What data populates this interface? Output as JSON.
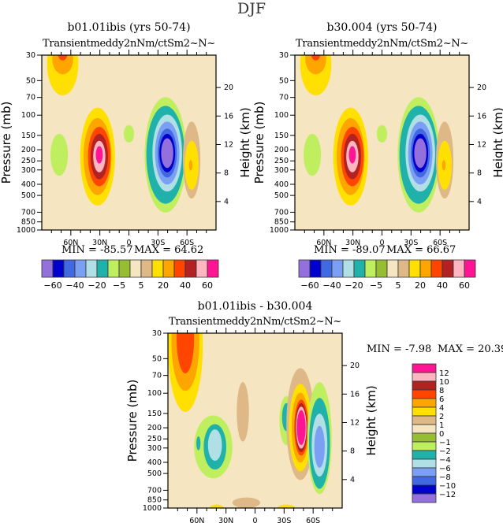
{
  "suptitle": "DJF",
  "chart_data": [
    {
      "type": "heatmap",
      "subtype": "filled-contour",
      "title": "b01.01ibis (yrs 50-74)",
      "subtitle_overlap": "Transient eddy momentum (m2/s2) ~N~",
      "subtitle_raw": "Transientmeddy2nNm/ctSm2~N~",
      "xlabel": "",
      "ylabel": "Pressure (mb)",
      "ylabel_right": "Height (km)",
      "x_ticks": [
        "60N",
        "30N",
        "0",
        "30S",
        "60S"
      ],
      "x_range": [
        "90N",
        "90S"
      ],
      "y_ticks": [
        30,
        50,
        70,
        100,
        150,
        200,
        250,
        300,
        400,
        500,
        700,
        850,
        1000
      ],
      "y_range_mb": [
        1000,
        30
      ],
      "y_right_ticks": [
        4,
        8,
        12,
        16,
        20
      ],
      "min": -85.57,
      "max": 64.62,
      "min_label": "MIN = -85.57",
      "max_label": "MAX = 64.62",
      "features": [
        {
          "desc": "positive max near 30N, ~250mb",
          "lat": 25,
          "p": 250,
          "value": 64.62
        },
        {
          "desc": "negative min near 30S, ~200mb",
          "lat": -35,
          "p": 200,
          "value": -85.57
        },
        {
          "desc": "positive lobe near 60N, stratosphere",
          "lat": 70,
          "p": 30,
          "value": 40
        },
        {
          "desc": "weak positive near 60S",
          "lat": -60,
          "p": 300,
          "value": 25
        }
      ]
    },
    {
      "type": "heatmap",
      "subtype": "filled-contour",
      "title": "b30.004 (yrs 50-74)",
      "subtitle_overlap": "Transient eddy momentum (m2/s2) ~N~",
      "subtitle_raw": "Transientmeddy2nNm/ctSm2~N~",
      "ylabel": "Pressure (mb)",
      "ylabel_right": "Height (km)",
      "x_ticks": [
        "60N",
        "30N",
        "0",
        "30S",
        "60S"
      ],
      "y_ticks": [
        30,
        50,
        70,
        100,
        150,
        200,
        250,
        300,
        400,
        500,
        700,
        850,
        1000
      ],
      "y_right_ticks": [
        4,
        8,
        12,
        16,
        20
      ],
      "min": -89.07,
      "max": 66.67,
      "min_label": "MIN = -89.07",
      "max_label": "MAX = 66.67",
      "features": [
        {
          "desc": "positive max near 30N, ~250mb",
          "lat": 28,
          "p": 250,
          "value": 66.67
        },
        {
          "desc": "negative min near 30S, ~200mb",
          "lat": -38,
          "p": 200,
          "value": -89.07
        },
        {
          "desc": "positive lobe near 60N, stratosphere",
          "lat": 70,
          "p": 30,
          "value": 20
        },
        {
          "desc": "weak positive near 60S",
          "lat": -62,
          "p": 300,
          "value": 25
        }
      ]
    },
    {
      "type": "heatmap",
      "subtype": "filled-contour",
      "title": "b01.01ibis - b30.004",
      "subtitle_overlap": "Transient eddy momentum (m2/s2) ~N~",
      "subtitle_raw": "Transientmeddy2nNm/ctSm2~N~",
      "ylabel": "Pressure (mb)",
      "ylabel_right": "Height (km)",
      "x_ticks": [
        "60N",
        "30N",
        "0",
        "30S",
        "60S"
      ],
      "y_ticks": [
        30,
        50,
        70,
        100,
        150,
        200,
        250,
        300,
        400,
        500,
        700,
        850,
        1000
      ],
      "y_right_ticks": [
        4,
        8,
        12,
        16,
        20
      ],
      "min": -7.98,
      "max": 20.39,
      "min_label": "MIN = -7.98",
      "max_label": "MAX = 20.39",
      "features": [
        {
          "desc": "positive max near 80N stratosphere",
          "lat": 78,
          "p": 30,
          "value": 8
        },
        {
          "desc": "negative lobe near 50N, ~300mb",
          "lat": 50,
          "p": 300,
          "value": -6
        },
        {
          "desc": "strong positive near 45S, ~250mb",
          "lat": -45,
          "p": 270,
          "value": 20.39
        },
        {
          "desc": "negative near 65S, ~300mb",
          "lat": -65,
          "p": 300,
          "value": -7.98
        }
      ]
    }
  ],
  "colorbar_top": {
    "colors": [
      "#9370DB",
      "#0000CD",
      "#4169E1",
      "#7B9FF2",
      "#B0E0E6",
      "#20B2AA",
      "#BFEF5F",
      "#97BD32",
      "#F5E5C0",
      "#DEB887",
      "#FFE000",
      "#FFA500",
      "#FF4500",
      "#B22222",
      "#FFB6C1",
      "#FF1493"
    ],
    "labels": [
      "-60",
      "-40",
      "-20",
      "-5",
      "5",
      "20",
      "40",
      "60"
    ]
  },
  "colorbar_diff": {
    "colors": [
      "#FF1493",
      "#FFB6C1",
      "#B22222",
      "#FF4500",
      "#FFA500",
      "#FFE000",
      "#DEB887",
      "#F5E5C0",
      "#97BD32",
      "#BFEF5F",
      "#20B2AA",
      "#B0E0E6",
      "#7B9FF2",
      "#4169E1",
      "#0000CD",
      "#9370DB"
    ],
    "labels": [
      "12",
      "10",
      "8",
      "6",
      "4",
      "2",
      "1",
      "0",
      "-1",
      "-2",
      "-4",
      "-6",
      "-8",
      "-10",
      "-12"
    ]
  }
}
